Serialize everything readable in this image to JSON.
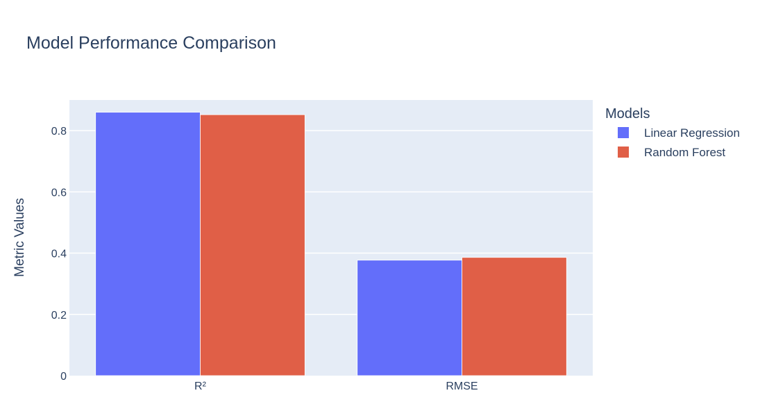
{
  "chart_data": {
    "type": "bar",
    "title": "Model Performance Comparison",
    "xlabel": "",
    "ylabel": "Metric Values",
    "categories": [
      "R²",
      "RMSE"
    ],
    "series": [
      {
        "name": "Linear Regression",
        "values": [
          0.86,
          0.377
        ],
        "color": "#636efa"
      },
      {
        "name": "Random Forest",
        "values": [
          0.852,
          0.386
        ],
        "color": "#e05f47"
      }
    ],
    "ylim": [
      0,
      0.9
    ],
    "yticks": [
      0,
      0.2,
      0.4,
      0.6,
      0.8
    ],
    "ytick_labels": [
      "0",
      "0.2",
      "0.4",
      "0.6",
      "0.8"
    ],
    "grid": true,
    "legend": {
      "title": "Models",
      "placement": "top-right, outside plot"
    },
    "colors": {
      "plot_background": "#e5ecf6",
      "gridline": "#ffffff",
      "text": "#2a3f5f"
    }
  }
}
